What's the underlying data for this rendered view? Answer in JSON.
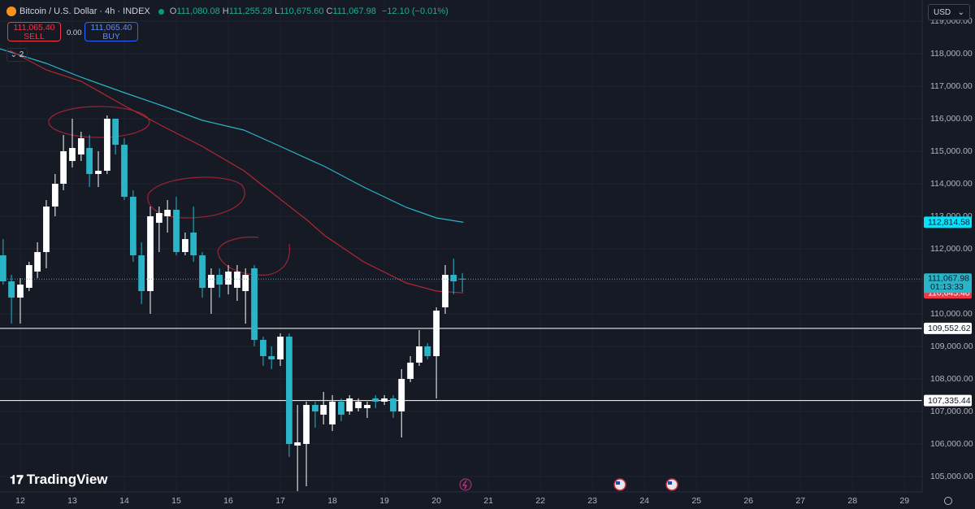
{
  "header": {
    "symbol": "Bitcoin / U.S. Dollar · 4h · INDEX",
    "ohlc": [
      {
        "k": "O",
        "v": "111,080.08"
      },
      {
        "k": "H",
        "v": "111,255.28"
      },
      {
        "k": "L",
        "v": "110,675.60"
      },
      {
        "k": "C",
        "v": "111,067.98"
      }
    ],
    "change": "−12.10 (−0.01%)",
    "sell_price": "111,065.40",
    "sell": "SELL",
    "spread": "0.00",
    "buy_price": "111,065.40",
    "buy": "BUY",
    "indicators": "2",
    "currency": "USD",
    "brand": "TradingView"
  },
  "chart_data": {
    "type": "candlestick",
    "up_color": "#ffffff",
    "down_color": "#2ab4c8",
    "grid": true,
    "x": [
      11.67,
      11.83,
      12,
      12.17,
      12.33,
      12.5,
      12.67,
      12.83,
      13,
      13.17,
      13.33,
      13.5,
      13.67,
      13.83,
      14,
      14.17,
      14.33,
      14.5,
      14.67,
      14.83,
      15,
      15.17,
      15.33,
      15.5,
      15.67,
      15.83,
      16,
      16.17,
      16.33,
      16.5,
      16.67,
      16.83,
      17,
      17.17,
      17.33,
      17.5,
      17.67,
      17.83,
      18,
      18.17,
      18.33,
      18.5,
      18.67,
      18.83,
      19,
      19.17,
      19.33,
      19.5,
      19.67,
      19.83,
      20,
      20.17,
      20.33,
      20.5
    ],
    "open": [
      111800,
      111000,
      110500,
      110800,
      111300,
      111900,
      113300,
      114000,
      114700,
      114900,
      115100,
      114300,
      114400,
      116000,
      115200,
      113600,
      111800,
      110700,
      112800,
      113000,
      113200,
      111900,
      112500,
      111800,
      110800,
      111200,
      110900,
      110800,
      110700,
      111400,
      109200,
      108700,
      108600,
      109300,
      105950,
      106000,
      107200,
      106900,
      106600,
      107300,
      107000,
      107100,
      107100,
      107400,
      107300,
      107400,
      107000,
      108000,
      108500,
      109000,
      108700,
      110200,
      111200,
      111080.08
    ],
    "high": [
      112300,
      111200,
      111100,
      111600,
      112200,
      113500,
      114300,
      115500,
      116000,
      115600,
      115500,
      115000,
      116100,
      116000,
      115400,
      113800,
      112200,
      113300,
      113300,
      113500,
      113600,
      112500,
      113300,
      111900,
      111400,
      111400,
      111500,
      111500,
      111400,
      111500,
      109300,
      109000,
      109400,
      109400,
      107200,
      107300,
      107300,
      107600,
      107500,
      107400,
      107500,
      107400,
      107300,
      107500,
      107500,
      107500,
      108300,
      108700,
      109500,
      109100,
      110200,
      111500,
      111700,
      111255.28
    ],
    "low": [
      110900,
      109700,
      109700,
      110700,
      111100,
      111400,
      113000,
      113800,
      114500,
      114700,
      113900,
      113900,
      114300,
      114900,
      113500,
      111600,
      110300,
      110000,
      111900,
      112500,
      111800,
      111800,
      111600,
      110500,
      110000,
      110500,
      110600,
      110400,
      109700,
      109000,
      108400,
      108300,
      108400,
      105600,
      104550,
      104700,
      106500,
      106600,
      106400,
      106700,
      106900,
      107000,
      106800,
      107100,
      107200,
      106800,
      106200,
      107900,
      108400,
      108600,
      107400,
      110000,
      110600,
      110675.6
    ],
    "close": [
      111000,
      110500,
      110900,
      111500,
      111900,
      113300,
      114000,
      115000,
      115100,
      115400,
      114300,
      114400,
      116000,
      115200,
      113600,
      111800,
      110700,
      113000,
      113100,
      113200,
      111900,
      112300,
      111800,
      110800,
      111200,
      110900,
      111300,
      111300,
      111200,
      109200,
      108700,
      108600,
      109300,
      106000,
      106050,
      107200,
      107000,
      107200,
      107300,
      106900,
      107400,
      107300,
      107200,
      107300,
      107400,
      107000,
      108000,
      108500,
      109000,
      108700,
      110100,
      111200,
      111000,
      111067.98
    ],
    "lines": [
      {
        "color": "#2ab4c8",
        "x": [
          11.61,
          12.5,
          13.17,
          14,
          14.73,
          15.5,
          16.3,
          17,
          17.86,
          18.6,
          19.42,
          20,
          20.52
        ],
        "values": [
          118150,
          117700,
          117275,
          116800,
          116400,
          115950,
          115650,
          115150,
          114525,
          113900,
          113275,
          112950,
          112814.58
        ],
        "last_label": {
          "value": 112814.58,
          "label": "112,814.58"
        }
      },
      {
        "color": "#b22833",
        "x": [
          11.8,
          12.5,
          13.17,
          14,
          14.73,
          15.5,
          16.3,
          17,
          17.5,
          17.86,
          18.6,
          19.42,
          20,
          20.52
        ],
        "values": [
          118100,
          117500,
          117150,
          116400,
          115775,
          115150,
          114400,
          113525,
          112900,
          112400,
          111600,
          110950,
          110700,
          110645.4
        ],
        "last_label": {
          "value": 110645.4,
          "label": "110,645.40"
        }
      }
    ],
    "hlines": [
      {
        "value": 109552.62,
        "label": "109,552.62"
      },
      {
        "value": 107335.44,
        "label": "107,335.44"
      }
    ],
    "last": {
      "value": 111067.98,
      "label": "111,067.98",
      "countdown": "01:13:33"
    },
    "xlim": [
      11.61,
      29.34
    ],
    "xticks": [
      12,
      13,
      14,
      15,
      16,
      17,
      18,
      19,
      20,
      21,
      22,
      23,
      24,
      25,
      26,
      27,
      28,
      29
    ],
    "ylim": [
      104525,
      119650
    ],
    "yticks": [
      {
        "value": 105000,
        "label": "105,000.00"
      },
      {
        "value": 106000,
        "label": "106,000.00"
      },
      {
        "value": 107000,
        "label": "107,000.00"
      },
      {
        "value": 108000,
        "label": "108,000.00"
      },
      {
        "value": 109000,
        "label": "109,000.00"
      },
      {
        "value": 110000,
        "label": "110,000.00"
      },
      {
        "value": 111000,
        "label": "111,000.00"
      },
      {
        "value": 112000,
        "label": "112,000.00"
      },
      {
        "value": 113000,
        "label": "113,000.00"
      },
      {
        "value": 114000,
        "label": "114,000.00"
      },
      {
        "value": 115000,
        "label": "115,000.00"
      },
      {
        "value": 116000,
        "label": "116,000.00"
      },
      {
        "value": 117000,
        "label": "117,000.00"
      },
      {
        "value": 118000,
        "label": "118,000.00"
      },
      {
        "value": 119000,
        "label": "119,000.00"
      }
    ]
  }
}
